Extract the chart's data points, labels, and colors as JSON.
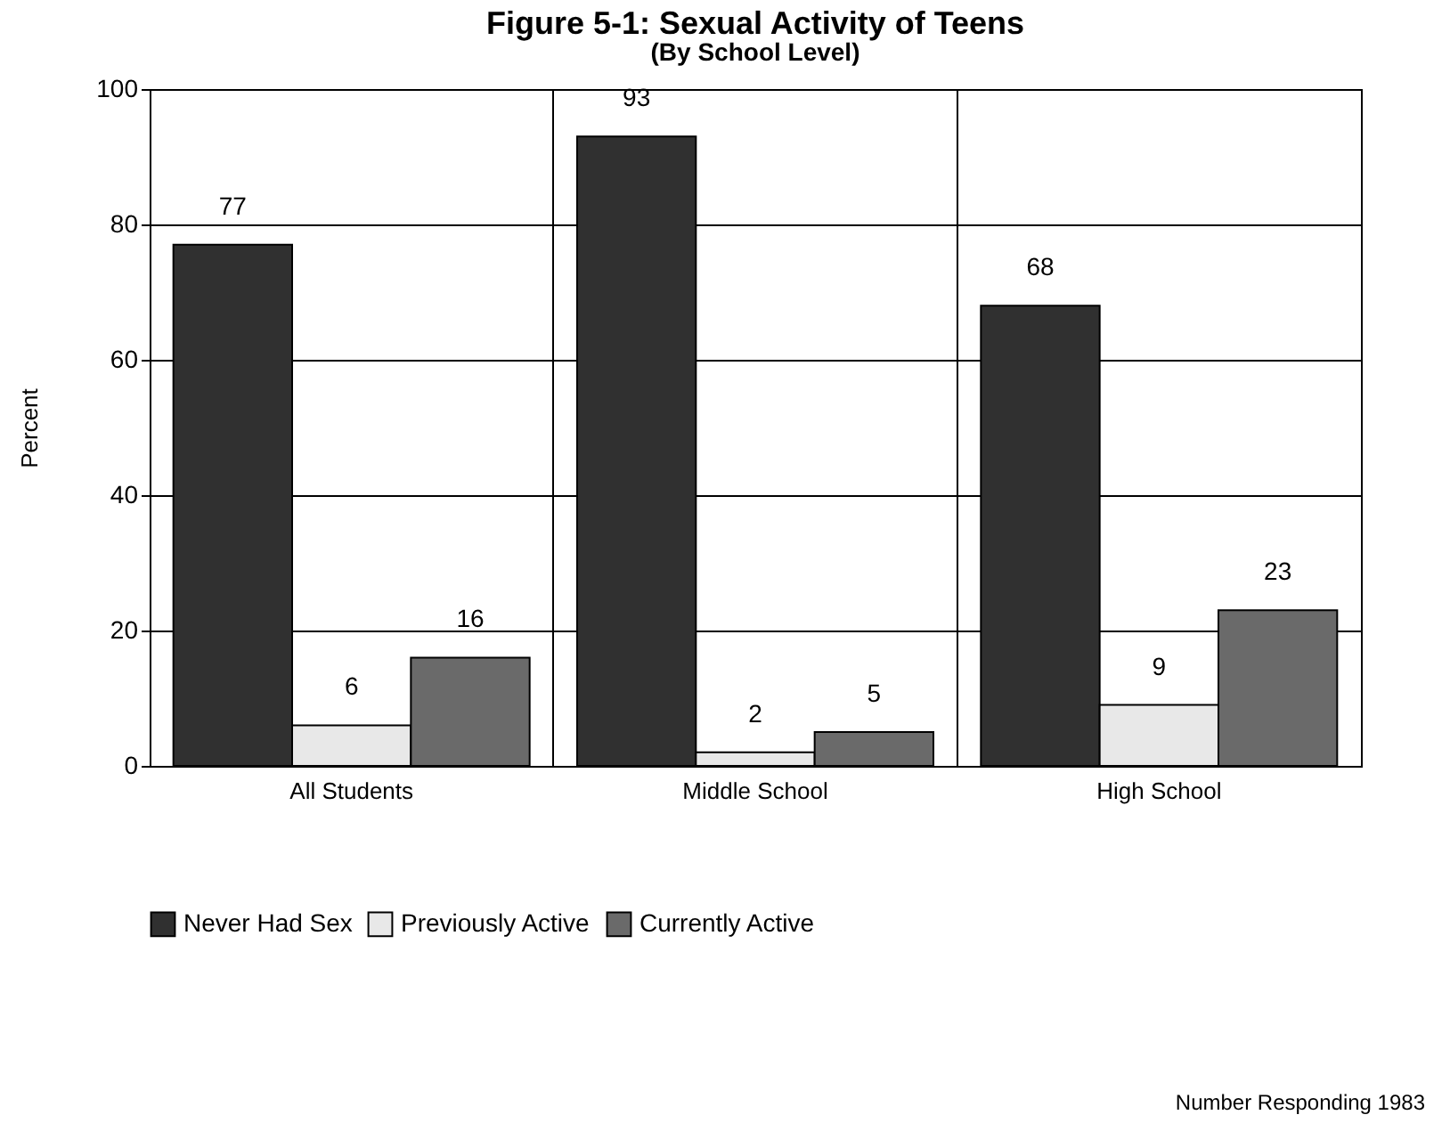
{
  "chart_data": {
    "type": "bar",
    "title": "Figure 5-1: Sexual Activity of Teens",
    "subtitle": "(By School Level)",
    "ylabel": "Percent",
    "categories": [
      "All Students",
      "Middle School",
      "High School"
    ],
    "series": [
      {
        "name": "Never Had Sex",
        "color": "#303030",
        "values": [
          77,
          93,
          68
        ]
      },
      {
        "name": "Previously Active",
        "color": "#e8e8e8",
        "values": [
          6,
          2,
          9
        ]
      },
      {
        "name": "Currently Active",
        "color": "#6a6a6a",
        "values": [
          16,
          5,
          23
        ]
      }
    ],
    "ylim": [
      0,
      100
    ],
    "yticks": [
      0,
      20,
      40,
      60,
      80,
      100
    ],
    "grid": true,
    "legend": "bottom left",
    "data_labels": true,
    "annotations": [
      "Number Responding 1983"
    ]
  }
}
